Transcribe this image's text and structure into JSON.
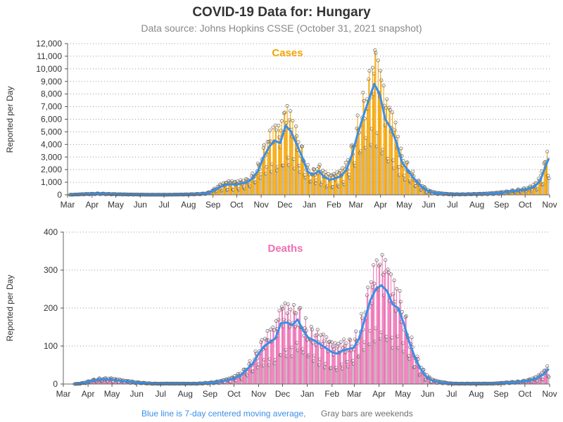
{
  "header": {
    "title": "COVID-19 Data for: Hungary",
    "subtitle": "Data source: Johns Hopkins CSSE (October 31, 2021 snapshot)"
  },
  "footer": {
    "note_blue": "Blue line is 7-day centered moving average,",
    "note_gray": "Gray bars are weekends"
  },
  "colors": {
    "cases": "#f5a300",
    "deaths": "#ee6fb3",
    "moving_average": "#3a8fe8",
    "weekend_note": "#707070",
    "title": "#333333",
    "subtitle": "#888888"
  },
  "chart_data": [
    {
      "type": "bar",
      "title": "Cases",
      "ylabel": "Reported per Day",
      "ylim": [
        0,
        12000
      ],
      "yticks": [
        0,
        1000,
        2000,
        3000,
        4000,
        5000,
        6000,
        7000,
        8000,
        9000,
        10000,
        11000,
        12000
      ],
      "ytick_labels": [
        "0",
        "1,000",
        "2,000",
        "3,000",
        "4,000",
        "5,000",
        "6,000",
        "7,000",
        "8,000",
        "9,000",
        "10,000",
        "11,000",
        "12,000"
      ],
      "x_tick_labels": [
        "Mar",
        "Apr",
        "May",
        "Jun",
        "Jul",
        "Aug",
        "Sep",
        "Oct",
        "Nov",
        "Dec",
        "Jan",
        "Feb",
        "Mar",
        "Apr",
        "May",
        "Jun",
        "Jul",
        "Aug",
        "Sep",
        "Oct",
        "Nov"
      ],
      "grid": "horizontal dotted",
      "series_name": "Blue line is 7-day centered moving average",
      "weekly": [
        [
          "2020-03-04",
          5
        ],
        [
          "2020-03-11",
          20
        ],
        [
          "2020-03-18",
          40
        ],
        [
          "2020-03-25",
          60
        ],
        [
          "2020-04-01",
          70
        ],
        [
          "2020-04-08",
          90
        ],
        [
          "2020-04-15",
          80
        ],
        [
          "2020-04-22",
          60
        ],
        [
          "2020-04-29",
          50
        ],
        [
          "2020-05-06",
          40
        ],
        [
          "2020-05-13",
          30
        ],
        [
          "2020-05-20",
          25
        ],
        [
          "2020-05-27",
          20
        ],
        [
          "2020-06-03",
          15
        ],
        [
          "2020-06-10",
          10
        ],
        [
          "2020-06-17",
          10
        ],
        [
          "2020-06-24",
          10
        ],
        [
          "2020-07-01",
          10
        ],
        [
          "2020-07-08",
          10
        ],
        [
          "2020-07-15",
          15
        ],
        [
          "2020-07-22",
          20
        ],
        [
          "2020-07-29",
          30
        ],
        [
          "2020-08-05",
          40
        ],
        [
          "2020-08-12",
          60
        ],
        [
          "2020-08-19",
          80
        ],
        [
          "2020-08-26",
          150
        ],
        [
          "2020-09-02",
          350
        ],
        [
          "2020-09-09",
          600
        ],
        [
          "2020-09-16",
          750
        ],
        [
          "2020-09-23",
          850
        ],
        [
          "2020-09-30",
          800
        ],
        [
          "2020-10-07",
          900
        ],
        [
          "2020-10-14",
          1000
        ],
        [
          "2020-10-21",
          1300
        ],
        [
          "2020-10-28",
          1900
        ],
        [
          "2020-11-04",
          3000
        ],
        [
          "2020-11-11",
          3800
        ],
        [
          "2020-11-18",
          4300
        ],
        [
          "2020-11-25",
          4100
        ],
        [
          "2020-12-02",
          5500
        ],
        [
          "2020-12-09",
          5000
        ],
        [
          "2020-12-16",
          4000
        ],
        [
          "2020-12-23",
          3000
        ],
        [
          "2020-12-30",
          1800
        ],
        [
          "2021-01-06",
          1600
        ],
        [
          "2021-01-13",
          1900
        ],
        [
          "2021-01-20",
          1400
        ],
        [
          "2021-01-27",
          1200
        ],
        [
          "2021-02-03",
          1300
        ],
        [
          "2021-02-10",
          1500
        ],
        [
          "2021-02-17",
          2000
        ],
        [
          "2021-02-24",
          3200
        ],
        [
          "2021-03-03",
          4800
        ],
        [
          "2021-03-10",
          6200
        ],
        [
          "2021-03-17",
          7500
        ],
        [
          "2021-03-24",
          8800
        ],
        [
          "2021-03-31",
          8000
        ],
        [
          "2021-04-07",
          6000
        ],
        [
          "2021-04-14",
          5300
        ],
        [
          "2021-04-21",
          4200
        ],
        [
          "2021-04-28",
          2600
        ],
        [
          "2021-05-05",
          2000
        ],
        [
          "2021-05-12",
          1400
        ],
        [
          "2021-05-19",
          900
        ],
        [
          "2021-05-26",
          500
        ],
        [
          "2021-06-02",
          250
        ],
        [
          "2021-06-09",
          150
        ],
        [
          "2021-06-16",
          100
        ],
        [
          "2021-06-23",
          70
        ],
        [
          "2021-06-30",
          50
        ],
        [
          "2021-07-07",
          40
        ],
        [
          "2021-07-14",
          40
        ],
        [
          "2021-07-21",
          50
        ],
        [
          "2021-07-28",
          60
        ],
        [
          "2021-08-04",
          70
        ],
        [
          "2021-08-11",
          80
        ],
        [
          "2021-08-18",
          100
        ],
        [
          "2021-08-25",
          130
        ],
        [
          "2021-09-01",
          170
        ],
        [
          "2021-09-08",
          220
        ],
        [
          "2021-09-15",
          280
        ],
        [
          "2021-09-22",
          330
        ],
        [
          "2021-09-29",
          400
        ],
        [
          "2021-10-06",
          480
        ],
        [
          "2021-10-13",
          650
        ],
        [
          "2021-10-20",
          1100
        ],
        [
          "2021-10-27",
          2300
        ],
        [
          "2021-10-31",
          2900
        ]
      ],
      "peak_day": [
        "2021-03-26",
        11265
      ]
    },
    {
      "type": "bar",
      "title": "Deaths",
      "ylabel": "Reported per Day",
      "ylim": [
        0,
        400
      ],
      "yticks": [
        0,
        100,
        200,
        300,
        400
      ],
      "ytick_labels": [
        "0",
        "100",
        "200",
        "300",
        "400"
      ],
      "x_tick_labels": [
        "Mar",
        "Apr",
        "May",
        "Jun",
        "Jul",
        "Aug",
        "Sep",
        "Oct",
        "Nov",
        "Dec",
        "Jan",
        "Feb",
        "Mar",
        "Apr",
        "May",
        "Jun",
        "Jul",
        "Aug",
        "Sep",
        "Oct",
        "Nov"
      ],
      "grid": "horizontal dotted",
      "series_name": "Blue line is 7-day centered moving average",
      "weekly": [
        [
          "2020-03-15",
          0
        ],
        [
          "2020-03-22",
          1
        ],
        [
          "2020-03-29",
          4
        ],
        [
          "2020-04-05",
          8
        ],
        [
          "2020-04-12",
          11
        ],
        [
          "2020-04-19",
          12
        ],
        [
          "2020-04-26",
          12
        ],
        [
          "2020-05-03",
          11
        ],
        [
          "2020-05-10",
          9
        ],
        [
          "2020-05-17",
          7
        ],
        [
          "2020-05-24",
          6
        ],
        [
          "2020-05-31",
          4
        ],
        [
          "2020-06-07",
          3
        ],
        [
          "2020-06-14",
          2
        ],
        [
          "2020-06-21",
          1
        ],
        [
          "2020-06-28",
          1
        ],
        [
          "2020-07-05",
          1
        ],
        [
          "2020-07-12",
          1
        ],
        [
          "2020-07-19",
          1
        ],
        [
          "2020-07-26",
          1
        ],
        [
          "2020-08-02",
          1
        ],
        [
          "2020-08-09",
          1
        ],
        [
          "2020-08-16",
          1
        ],
        [
          "2020-08-23",
          2
        ],
        [
          "2020-08-30",
          3
        ],
        [
          "2020-09-06",
          4
        ],
        [
          "2020-09-13",
          6
        ],
        [
          "2020-09-20",
          9
        ],
        [
          "2020-09-27",
          12
        ],
        [
          "2020-10-04",
          18
        ],
        [
          "2020-10-11",
          25
        ],
        [
          "2020-10-18",
          40
        ],
        [
          "2020-10-25",
          55
        ],
        [
          "2020-11-01",
          80
        ],
        [
          "2020-11-08",
          100
        ],
        [
          "2020-11-15",
          110
        ],
        [
          "2020-11-22",
          120
        ],
        [
          "2020-11-29",
          160
        ],
        [
          "2020-12-06",
          162
        ],
        [
          "2020-12-13",
          155
        ],
        [
          "2020-12-20",
          170
        ],
        [
          "2020-12-27",
          140
        ],
        [
          "2021-01-03",
          120
        ],
        [
          "2021-01-10",
          115
        ],
        [
          "2021-01-17",
          105
        ],
        [
          "2021-01-24",
          95
        ],
        [
          "2021-01-31",
          85
        ],
        [
          "2021-02-07",
          80
        ],
        [
          "2021-02-14",
          88
        ],
        [
          "2021-02-21",
          92
        ],
        [
          "2021-02-28",
          95
        ],
        [
          "2021-03-07",
          120
        ],
        [
          "2021-03-14",
          170
        ],
        [
          "2021-03-21",
          220
        ],
        [
          "2021-03-28",
          250
        ],
        [
          "2021-04-04",
          260
        ],
        [
          "2021-04-11",
          245
        ],
        [
          "2021-04-18",
          210
        ],
        [
          "2021-04-25",
          200
        ],
        [
          "2021-05-02",
          160
        ],
        [
          "2021-05-09",
          110
        ],
        [
          "2021-05-16",
          70
        ],
        [
          "2021-05-23",
          40
        ],
        [
          "2021-05-30",
          20
        ],
        [
          "2021-06-06",
          10
        ],
        [
          "2021-06-13",
          6
        ],
        [
          "2021-06-20",
          4
        ],
        [
          "2021-06-27",
          2
        ],
        [
          "2021-07-04",
          1
        ],
        [
          "2021-07-11",
          1
        ],
        [
          "2021-07-18",
          1
        ],
        [
          "2021-07-25",
          1
        ],
        [
          "2021-08-01",
          1
        ],
        [
          "2021-08-08",
          1
        ],
        [
          "2021-08-15",
          1
        ],
        [
          "2021-08-22",
          1
        ],
        [
          "2021-08-29",
          2
        ],
        [
          "2021-09-05",
          3
        ],
        [
          "2021-09-12",
          4
        ],
        [
          "2021-09-19",
          5
        ],
        [
          "2021-09-26",
          6
        ],
        [
          "2021-10-03",
          8
        ],
        [
          "2021-10-10",
          11
        ],
        [
          "2021-10-17",
          16
        ],
        [
          "2021-10-24",
          25
        ],
        [
          "2021-10-31",
          40
        ]
      ],
      "peak_day": [
        "2021-04-01",
        311
      ]
    }
  ]
}
